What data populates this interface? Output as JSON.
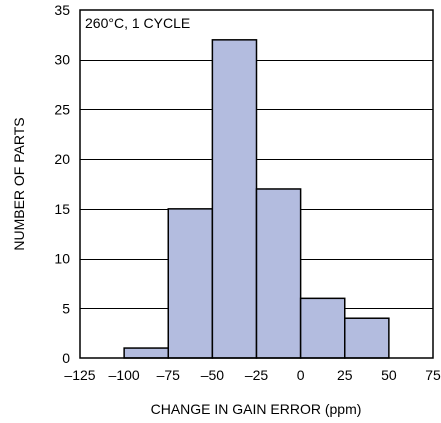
{
  "chart_data": {
    "type": "bar",
    "subtype": "histogram",
    "annotation": "260°C, 1 CYCLE",
    "xlabel": "CHANGE IN GAIN ERROR (ppm)",
    "ylabel": "NUMBER OF PARTS",
    "xlim": [
      -125,
      75
    ],
    "ylim": [
      0,
      35
    ],
    "x_ticks": [
      -125,
      -100,
      -75,
      -50,
      -25,
      0,
      25,
      50,
      75
    ],
    "x_tick_labels": [
      "–125",
      "–100",
      "–75",
      "–50",
      "–25",
      "0",
      "25",
      "50",
      "75"
    ],
    "y_ticks": [
      0,
      5,
      10,
      15,
      20,
      25,
      30,
      35
    ],
    "y_tick_labels": [
      "0",
      "5",
      "10",
      "15",
      "20",
      "25",
      "30",
      "35"
    ],
    "bins": [
      {
        "from": -100,
        "to": -75,
        "value": 1
      },
      {
        "from": -75,
        "to": -50,
        "value": 15
      },
      {
        "from": -50,
        "to": -25,
        "value": 32
      },
      {
        "from": -25,
        "to": 0,
        "value": 17
      },
      {
        "from": 0,
        "to": 25,
        "value": 6
      },
      {
        "from": 25,
        "to": 50,
        "value": 4
      }
    ],
    "grid": "horizontal",
    "colors": {
      "bar_fill": "#b3bcdf",
      "bar_stroke": "#000000",
      "grid": "#000000",
      "frame": "#000000"
    }
  }
}
